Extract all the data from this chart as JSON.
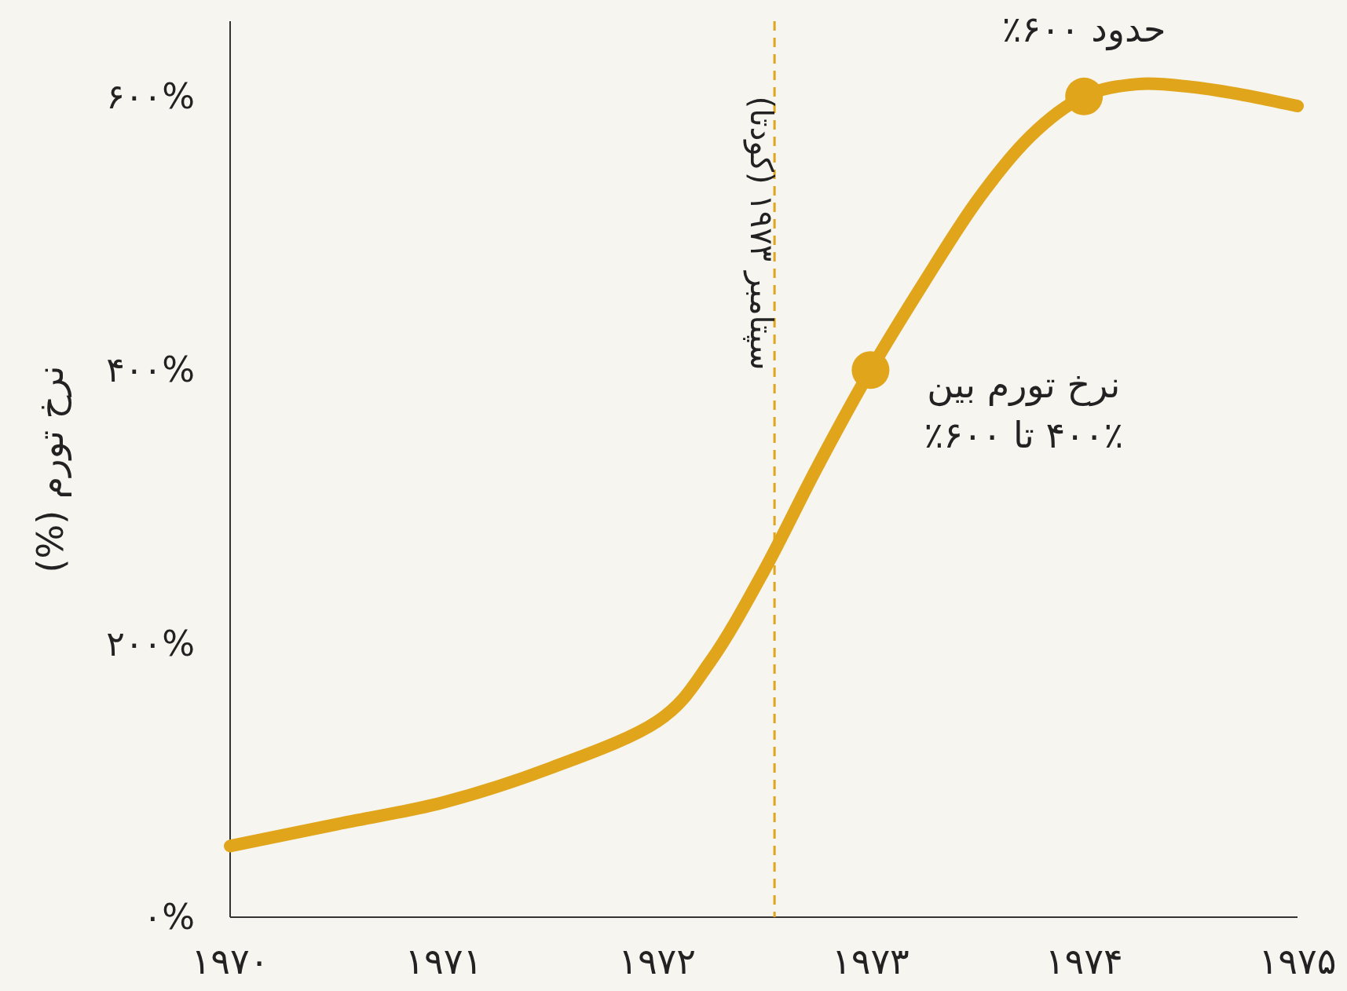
{
  "chart_data": {
    "type": "line",
    "ylabel": "نرخ تورم (%)",
    "x": [
      1970,
      1970.5,
      1971,
      1971.5,
      1972,
      1972.25,
      1972.5,
      1972.75,
      1973,
      1973.25,
      1973.5,
      1973.75,
      1974,
      1974.25,
      1974.5,
      1974.75,
      1975
    ],
    "series": [
      {
        "color": "#e0a51a",
        "values": [
          52,
          68,
          84,
          109,
          143,
          187,
          253,
          329,
          400,
          464,
          524,
          571,
          600,
          609,
          607,
          601,
          593
        ]
      },
      {
        "type": "scatter",
        "color": "#e0a51a",
        "marker": "circle",
        "x": [
          1973,
          1974
        ],
        "values": [
          400,
          600
        ]
      }
    ],
    "xlim": [
      1970,
      1975
    ],
    "xticks": [
      {
        "value": 1970,
        "label": "۱۹۷۰"
      },
      {
        "value": 1971,
        "label": "۱۹۷۱"
      },
      {
        "value": 1972,
        "label": "۱۹۷۲"
      },
      {
        "value": 1973,
        "label": "۱۹۷۳"
      },
      {
        "value": 1974,
        "label": "۱۹۷۴"
      },
      {
        "value": 1975,
        "label": "۱۹۷۵"
      }
    ],
    "ylim": [
      0,
      655
    ],
    "yticks": [
      {
        "value": 0,
        "label": "۰%"
      },
      {
        "value": 200,
        "label": "۲۰۰%"
      },
      {
        "value": 400,
        "label": "۴۰۰%"
      },
      {
        "value": 600,
        "label": "۶۰۰%"
      }
    ],
    "ref_lines": [
      {
        "axis": "x",
        "value": 1972.55,
        "label": "سپتامبر ۱۹۷۳ (کودتا)",
        "color": "#e0a51a",
        "line_style": "dashed"
      }
    ],
    "annotations": [
      {
        "text": "حدود ۶۰۰٪",
        "x": 1974,
        "y": 600
      },
      {
        "text": "نرخ تورم بین\n۴۰۰٪ تا ۶۰۰٪",
        "x": 1973,
        "y": 400
      }
    ],
    "grid": false
  }
}
